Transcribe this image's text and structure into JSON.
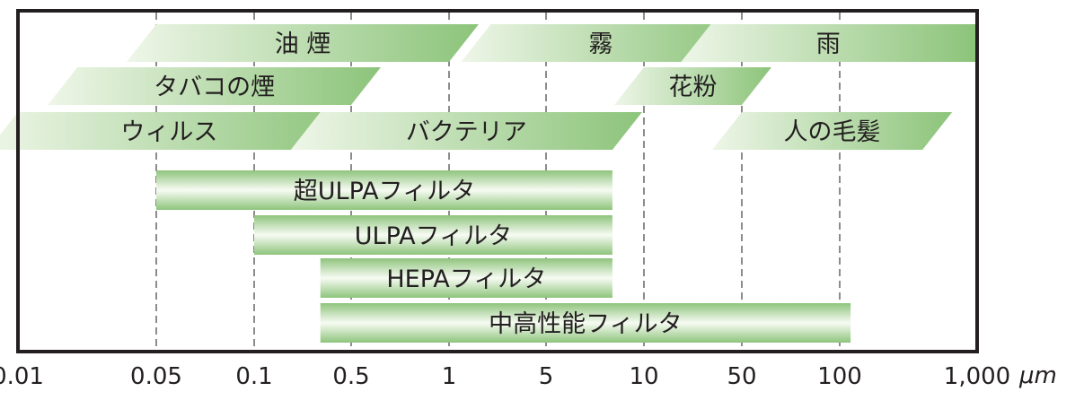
{
  "scale": {
    "ticks": [
      "0.01",
      "0.05",
      "0.1",
      "0.5",
      "1",
      "5",
      "10",
      "50",
      "100",
      "1,000"
    ],
    "unit": "μm",
    "log": true
  },
  "particles": [
    {
      "label": "油 煙",
      "from": 0.05,
      "to": 1
    },
    {
      "label": "霧",
      "from": 2,
      "to": 30
    },
    {
      "label": "雨",
      "from": 30,
      "to": 1000
    },
    {
      "label": "タバコの煙",
      "from": 0.02,
      "to": 0.5
    },
    {
      "label": "花粉",
      "from": 10,
      "to": 50
    },
    {
      "label": "ウィルス",
      "from": 0.01,
      "to": 0.3
    },
    {
      "label": "バクテリア",
      "from": 0.3,
      "to": 8
    },
    {
      "label": "人の毛髪",
      "from": 50,
      "to": 400
    }
  ],
  "filters": [
    {
      "label": "超ULPAフィルタ",
      "from": 0.05,
      "to": 8
    },
    {
      "label": "ULPAフィルタ",
      "from": 0.1,
      "to": 8
    },
    {
      "label": "HEPAフィルタ",
      "from": 0.3,
      "to": 8
    },
    {
      "label": "中高性能フィルタ",
      "from": 0.3,
      "to": 120
    }
  ],
  "colors": {
    "parallelogram_light": "#e9f3e2",
    "parallelogram_dark": "#8ec47c",
    "bar_edge": "#8ec47c",
    "bar_center": "#f7fbf3",
    "frame": "#231f20",
    "grid": "#8c8c8c"
  }
}
